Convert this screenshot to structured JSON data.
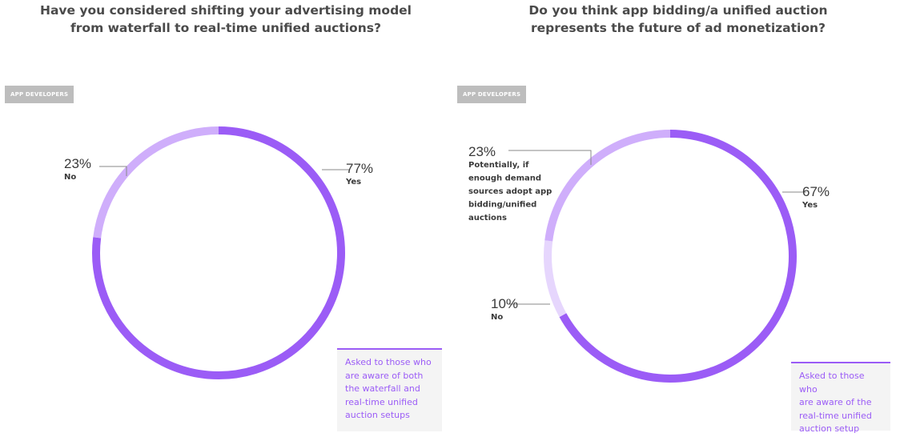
{
  "chart_data": [
    {
      "type": "pie",
      "title_lines": [
        "Have you considered shifting your advertising model",
        "from waterfall to real-time unified auctions?"
      ],
      "badge": "APP DEVELOPERS",
      "segments": [
        {
          "pct_label": "77%",
          "label_lines": [
            "Yes"
          ],
          "value": 77,
          "color": "#9b5cf6"
        },
        {
          "pct_label": "23%",
          "label_lines": [
            "No"
          ],
          "value": 23,
          "color": "#cfaefb"
        }
      ],
      "note_lines": [
        "Asked to those who",
        "are aware of both",
        "the waterfall and",
        "real-time unified",
        "auction setups"
      ]
    },
    {
      "type": "pie",
      "title_lines": [
        "Do you think app bidding/a unified auction",
        "represents the future of ad monetization?"
      ],
      "badge": "APP DEVELOPERS",
      "segments": [
        {
          "pct_label": "67%",
          "label_lines": [
            "Yes"
          ],
          "value": 67,
          "color": "#9b5cf6"
        },
        {
          "pct_label": "10%",
          "label_lines": [
            "No"
          ],
          "value": 10,
          "color": "#e6d6fd"
        },
        {
          "pct_label": "23%",
          "label_lines": [
            "Potentially, if",
            "enough demand",
            "sources adopt app",
            "bidding/unified",
            "auctions"
          ],
          "value": 23,
          "color": "#cfaefb"
        }
      ],
      "note_lines": [
        "Asked to those who",
        "are aware of the",
        "real-time unified",
        "auction setup"
      ]
    }
  ]
}
